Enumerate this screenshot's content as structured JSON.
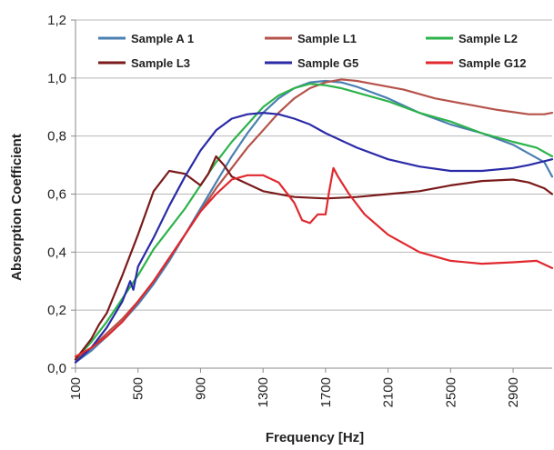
{
  "chart_data": {
    "type": "line",
    "xlabel": "Frequency [Hz]",
    "ylabel": "Absorption Coefficient",
    "xlim": [
      100,
      3150
    ],
    "ylim": [
      0,
      1.2
    ],
    "x_ticks": [
      100,
      500,
      900,
      1300,
      1700,
      2100,
      2500,
      2900
    ],
    "x_tick_labels": [
      "100",
      "500",
      "900",
      "1300",
      "1700",
      "2100",
      "2500",
      "2900"
    ],
    "y_ticks": [
      0,
      0.2,
      0.4,
      0.6,
      0.8,
      1.0,
      1.2
    ],
    "y_tick_labels": [
      "0,0",
      "0,2",
      "0,4",
      "0,6",
      "0,8",
      "1,0",
      "1,2"
    ],
    "grid": "horizontal",
    "legend_position": "top",
    "series": [
      {
        "name": "Sample A 1",
        "color": "#4a7fb0",
        "points": [
          [
            100,
            0.02
          ],
          [
            200,
            0.06
          ],
          [
            300,
            0.11
          ],
          [
            400,
            0.16
          ],
          [
            500,
            0.22
          ],
          [
            600,
            0.29
          ],
          [
            700,
            0.37
          ],
          [
            800,
            0.46
          ],
          [
            900,
            0.55
          ],
          [
            1000,
            0.64
          ],
          [
            1100,
            0.73
          ],
          [
            1200,
            0.81
          ],
          [
            1300,
            0.88
          ],
          [
            1400,
            0.93
          ],
          [
            1500,
            0.965
          ],
          [
            1600,
            0.985
          ],
          [
            1700,
            0.99
          ],
          [
            1800,
            0.985
          ],
          [
            1900,
            0.97
          ],
          [
            2100,
            0.93
          ],
          [
            2300,
            0.88
          ],
          [
            2500,
            0.84
          ],
          [
            2700,
            0.81
          ],
          [
            2900,
            0.77
          ],
          [
            3000,
            0.74
          ],
          [
            3100,
            0.71
          ],
          [
            3150,
            0.66
          ]
        ]
      },
      {
        "name": "Sample L1",
        "color": "#b5524a",
        "points": [
          [
            100,
            0.03
          ],
          [
            200,
            0.07
          ],
          [
            300,
            0.12
          ],
          [
            400,
            0.17
          ],
          [
            500,
            0.23
          ],
          [
            600,
            0.3
          ],
          [
            700,
            0.38
          ],
          [
            800,
            0.46
          ],
          [
            900,
            0.54
          ],
          [
            1000,
            0.62
          ],
          [
            1100,
            0.69
          ],
          [
            1200,
            0.76
          ],
          [
            1300,
            0.82
          ],
          [
            1400,
            0.88
          ],
          [
            1500,
            0.93
          ],
          [
            1600,
            0.965
          ],
          [
            1700,
            0.985
          ],
          [
            1800,
            0.995
          ],
          [
            1900,
            0.99
          ],
          [
            2000,
            0.98
          ],
          [
            2200,
            0.96
          ],
          [
            2400,
            0.93
          ],
          [
            2600,
            0.91
          ],
          [
            2800,
            0.89
          ],
          [
            3000,
            0.875
          ],
          [
            3100,
            0.875
          ],
          [
            3150,
            0.88
          ]
        ]
      },
      {
        "name": "Sample L2",
        "color": "#2db34a",
        "points": [
          [
            100,
            0.03
          ],
          [
            200,
            0.09
          ],
          [
            300,
            0.16
          ],
          [
            400,
            0.24
          ],
          [
            500,
            0.32
          ],
          [
            600,
            0.41
          ],
          [
            700,
            0.48
          ],
          [
            800,
            0.55
          ],
          [
            900,
            0.63
          ],
          [
            1000,
            0.71
          ],
          [
            1100,
            0.78
          ],
          [
            1200,
            0.84
          ],
          [
            1300,
            0.9
          ],
          [
            1400,
            0.94
          ],
          [
            1500,
            0.965
          ],
          [
            1600,
            0.98
          ],
          [
            1700,
            0.975
          ],
          [
            1800,
            0.965
          ],
          [
            1900,
            0.95
          ],
          [
            2100,
            0.92
          ],
          [
            2300,
            0.88
          ],
          [
            2500,
            0.85
          ],
          [
            2700,
            0.81
          ],
          [
            2900,
            0.78
          ],
          [
            3050,
            0.76
          ],
          [
            3150,
            0.73
          ]
        ]
      },
      {
        "name": "Sample L3",
        "color": "#7a1a1a",
        "points": [
          [
            100,
            0.03
          ],
          [
            200,
            0.1
          ],
          [
            250,
            0.15
          ],
          [
            300,
            0.19
          ],
          [
            400,
            0.32
          ],
          [
            500,
            0.46
          ],
          [
            600,
            0.61
          ],
          [
            700,
            0.68
          ],
          [
            800,
            0.67
          ],
          [
            900,
            0.63
          ],
          [
            950,
            0.67
          ],
          [
            1000,
            0.73
          ],
          [
            1050,
            0.7
          ],
          [
            1100,
            0.66
          ],
          [
            1300,
            0.61
          ],
          [
            1500,
            0.59
          ],
          [
            1700,
            0.585
          ],
          [
            1900,
            0.59
          ],
          [
            2100,
            0.6
          ],
          [
            2300,
            0.61
          ],
          [
            2500,
            0.63
          ],
          [
            2700,
            0.645
          ],
          [
            2900,
            0.65
          ],
          [
            3000,
            0.64
          ],
          [
            3100,
            0.62
          ],
          [
            3150,
            0.6
          ]
        ]
      },
      {
        "name": "Sample G5",
        "color": "#2a2aa8",
        "points": [
          [
            100,
            0.02
          ],
          [
            200,
            0.07
          ],
          [
            300,
            0.14
          ],
          [
            400,
            0.23
          ],
          [
            450,
            0.3
          ],
          [
            470,
            0.27
          ],
          [
            500,
            0.35
          ],
          [
            600,
            0.45
          ],
          [
            700,
            0.56
          ],
          [
            800,
            0.66
          ],
          [
            900,
            0.75
          ],
          [
            1000,
            0.82
          ],
          [
            1100,
            0.86
          ],
          [
            1200,
            0.875
          ],
          [
            1300,
            0.88
          ],
          [
            1400,
            0.875
          ],
          [
            1500,
            0.86
          ],
          [
            1600,
            0.84
          ],
          [
            1700,
            0.81
          ],
          [
            1900,
            0.76
          ],
          [
            2100,
            0.72
          ],
          [
            2300,
            0.695
          ],
          [
            2500,
            0.68
          ],
          [
            2700,
            0.68
          ],
          [
            2900,
            0.69
          ],
          [
            3000,
            0.7
          ],
          [
            3150,
            0.72
          ]
        ]
      },
      {
        "name": "Sample G12",
        "color": "#e0282e",
        "points": [
          [
            100,
            0.04
          ],
          [
            200,
            0.07
          ],
          [
            300,
            0.11
          ],
          [
            400,
            0.16
          ],
          [
            500,
            0.23
          ],
          [
            600,
            0.3
          ],
          [
            700,
            0.38
          ],
          [
            800,
            0.46
          ],
          [
            900,
            0.54
          ],
          [
            1000,
            0.6
          ],
          [
            1100,
            0.65
          ],
          [
            1200,
            0.665
          ],
          [
            1300,
            0.665
          ],
          [
            1400,
            0.64
          ],
          [
            1500,
            0.57
          ],
          [
            1550,
            0.51
          ],
          [
            1600,
            0.5
          ],
          [
            1650,
            0.53
          ],
          [
            1700,
            0.53
          ],
          [
            1720,
            0.6
          ],
          [
            1750,
            0.69
          ],
          [
            1780,
            0.66
          ],
          [
            1850,
            0.6
          ],
          [
            1950,
            0.53
          ],
          [
            2100,
            0.46
          ],
          [
            2300,
            0.4
          ],
          [
            2500,
            0.37
          ],
          [
            2700,
            0.36
          ],
          [
            2900,
            0.365
          ],
          [
            3050,
            0.37
          ],
          [
            3150,
            0.345
          ]
        ]
      }
    ]
  }
}
